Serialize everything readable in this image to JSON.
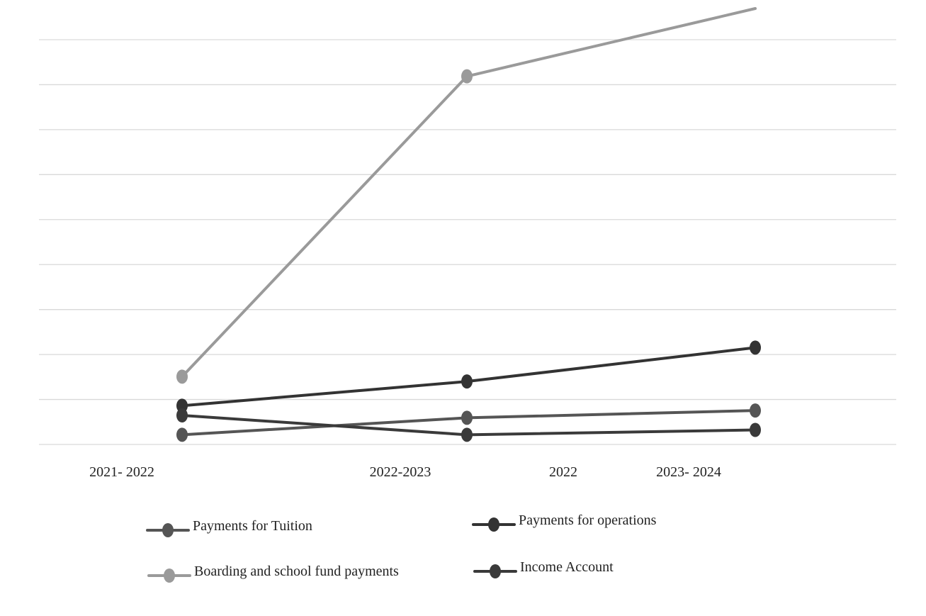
{
  "chart_data": {
    "type": "line",
    "categories": [
      "2021- 2022",
      "2022-2023",
      "2022",
      "2023- 2024"
    ],
    "grid": true,
    "legend_position": "bottom",
    "y_axis_labels_visible": false,
    "ylim": [
      0,
      9
    ],
    "series": [
      {
        "name": "Payments for Tuition",
        "color": "#555555",
        "values": [
          0.2,
          0.55,
          null,
          0.7
        ]
      },
      {
        "name": "Payments for operations",
        "color": "#333333",
        "values": [
          0.8,
          1.3,
          null,
          2.0
        ]
      },
      {
        "name": "Boarding and school fund payments",
        "color": "#9a9a9a",
        "values": [
          1.4,
          7.6,
          null,
          9.0
        ]
      },
      {
        "name": "Income Account",
        "color": "#3a3a3a",
        "values": [
          0.6,
          0.2,
          null,
          0.3
        ]
      }
    ]
  }
}
